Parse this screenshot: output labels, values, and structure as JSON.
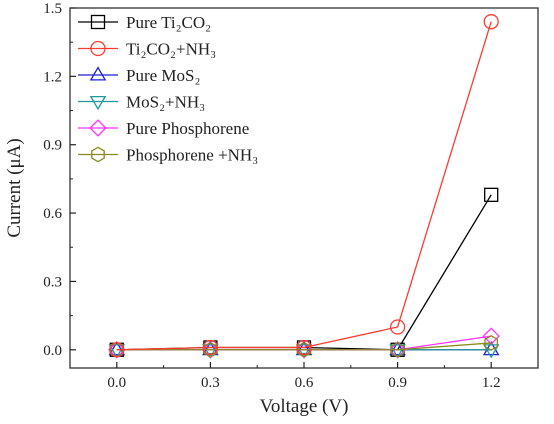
{
  "chart_data": {
    "type": "line",
    "title": "",
    "xlabel": "Voltage (V)",
    "ylabel": "Current (μA)",
    "x": [
      0.0,
      0.3,
      0.6,
      0.9,
      1.2
    ],
    "xticks": [
      "0.0",
      "0.3",
      "0.6",
      "0.9",
      "1.2"
    ],
    "yticks": [
      "0.0",
      "0.3",
      "0.6",
      "0.9",
      "1.2",
      "1.5"
    ],
    "xlim": [
      -0.15,
      1.35
    ],
    "ylim": [
      -0.08,
      1.5
    ],
    "grid": false,
    "legend_position": "top-left",
    "series": [
      {
        "name": "Pure Ti₂CO₂",
        "color": "#000000",
        "marker": "square",
        "values": [
          0.0,
          0.01,
          0.01,
          0.0,
          0.68
        ]
      },
      {
        "name": "Ti₂CO₂+NH₃",
        "color": "#ff3b30",
        "marker": "circle",
        "values": [
          0.0,
          0.01,
          0.01,
          0.1,
          1.44
        ]
      },
      {
        "name": "Pure MoS₂",
        "color": "#1f1fd0",
        "marker": "triangle-up",
        "values": [
          0.0,
          0.0,
          0.0,
          0.0,
          0.0
        ]
      },
      {
        "name": "MoS₂+NH₃",
        "color": "#1f9a9a",
        "marker": "triangle-down",
        "values": [
          0.0,
          0.0,
          0.0,
          0.0,
          0.0
        ]
      },
      {
        "name": "Pure Phosphorene",
        "color": "#ff33ff",
        "marker": "diamond",
        "values": [
          0.0,
          0.0,
          0.0,
          0.0,
          0.06
        ]
      },
      {
        "name": "Phosphorene +NH₃",
        "color": "#8a8a1a",
        "marker": "hexagon",
        "values": [
          0.0,
          0.0,
          0.0,
          0.0,
          0.03
        ]
      }
    ]
  }
}
